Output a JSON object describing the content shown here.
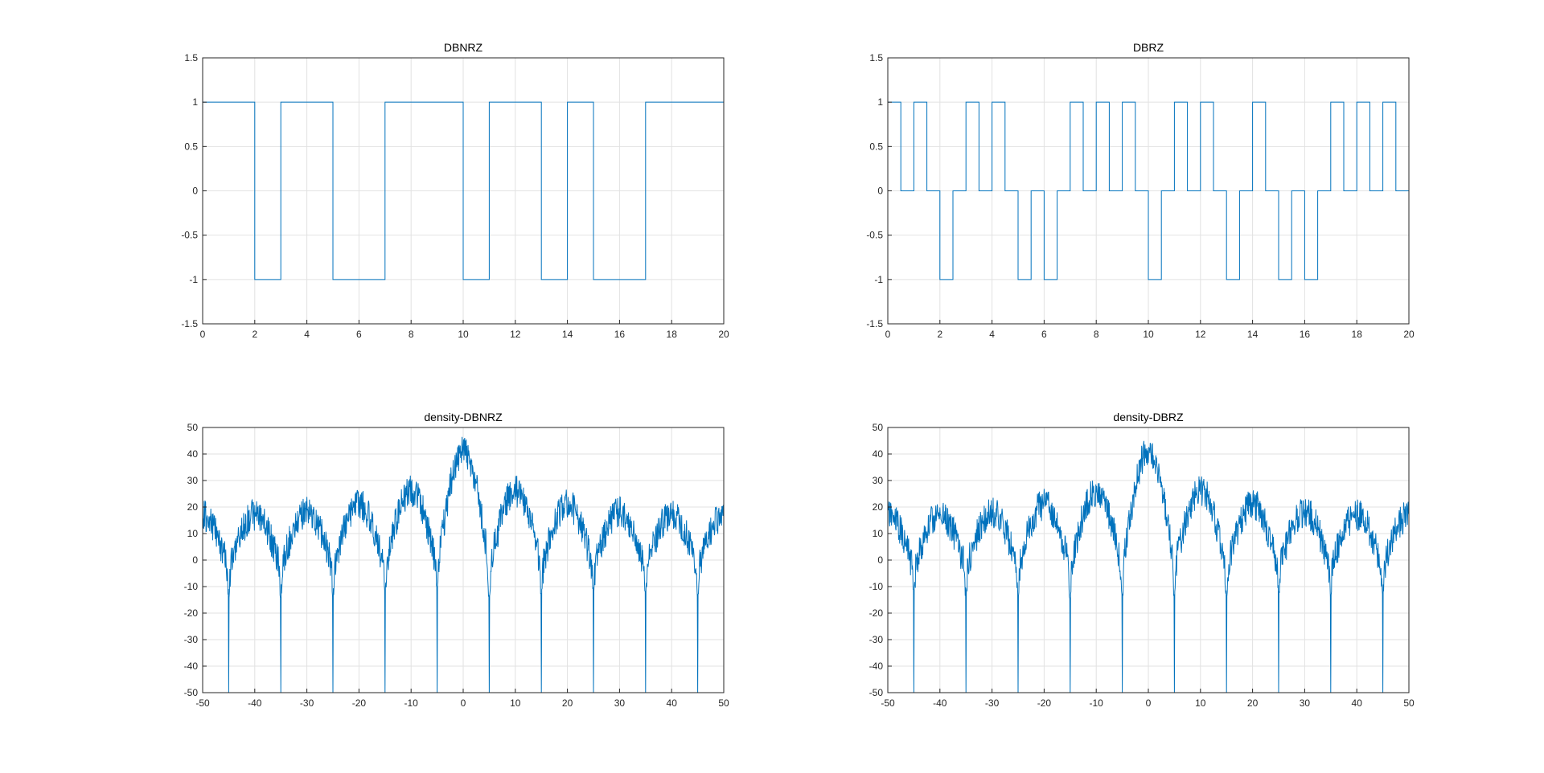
{
  "figure": {
    "background": "#ffffff",
    "line_color": "#0072bd",
    "grid_color": "#e2e2e2",
    "axis_color": "#262626"
  },
  "chart_data": [
    {
      "id": "dbnrz",
      "type": "line",
      "title": "DBNRZ",
      "xlabel": "",
      "ylabel": "",
      "xlim": [
        0,
        20
      ],
      "ylim": [
        -1.5,
        1.5
      ],
      "xticks": [
        0,
        2,
        4,
        6,
        8,
        10,
        12,
        14,
        16,
        18,
        20
      ],
      "xtick_labels": [
        "0",
        "2",
        "4",
        "6",
        "8",
        "10",
        "12",
        "14",
        "16",
        "18",
        "20"
      ],
      "yticks": [
        -1.5,
        -1,
        -0.5,
        0,
        0.5,
        1,
        1.5
      ],
      "ytick_labels": [
        "-1.5",
        "-1",
        "-0.5",
        "0",
        "0.5",
        "1",
        "1.5"
      ],
      "grid": true,
      "step": {
        "unit": 1,
        "levels": [
          1,
          1,
          -1,
          1,
          1,
          -1,
          -1,
          1,
          1,
          1,
          -1,
          1,
          1,
          -1,
          1,
          -1,
          -1,
          1,
          1,
          1
        ]
      }
    },
    {
      "id": "dbrz",
      "type": "line",
      "title": "DBRZ",
      "xlabel": "",
      "ylabel": "",
      "xlim": [
        0,
        20
      ],
      "ylim": [
        -1.5,
        1.5
      ],
      "xticks": [
        0,
        2,
        4,
        6,
        8,
        10,
        12,
        14,
        16,
        18,
        20
      ],
      "xtick_labels": [
        "0",
        "2",
        "4",
        "6",
        "8",
        "10",
        "12",
        "14",
        "16",
        "18",
        "20"
      ],
      "yticks": [
        -1.5,
        -1,
        -0.5,
        0,
        0.5,
        1,
        1.5
      ],
      "ytick_labels": [
        "-1.5",
        "-1",
        "-0.5",
        "0",
        "0.5",
        "1",
        "1.5"
      ],
      "grid": true,
      "step": {
        "unit": 0.5,
        "levels": [
          1,
          0,
          1,
          0,
          -1,
          0,
          1,
          0,
          1,
          0,
          -1,
          0,
          -1,
          0,
          1,
          0,
          1,
          0,
          1,
          0,
          -1,
          0,
          1,
          0,
          1,
          0,
          -1,
          0,
          1,
          0,
          -1,
          0,
          -1,
          0,
          1,
          0,
          1,
          0,
          1,
          0
        ]
      }
    },
    {
      "id": "density-dbnrz",
      "type": "line",
      "title": "density-DBNRZ",
      "xlabel": "",
      "ylabel": "",
      "xlim": [
        -50,
        50
      ],
      "ylim": [
        -50,
        50
      ],
      "xticks": [
        -50,
        -40,
        -30,
        -20,
        -10,
        0,
        10,
        20,
        30,
        40,
        50
      ],
      "xtick_labels": [
        "-50",
        "-40",
        "-30",
        "-20",
        "-10",
        "0",
        "10",
        "20",
        "30",
        "40",
        "50"
      ],
      "yticks": [
        -50,
        -40,
        -30,
        -20,
        -10,
        0,
        10,
        20,
        30,
        40,
        50
      ],
      "ytick_labels": [
        "-50",
        "-40",
        "-30",
        "-20",
        "-10",
        "0",
        "10",
        "20",
        "30",
        "40",
        "50"
      ],
      "grid": true,
      "spectrum": {
        "null_spacing": 10,
        "main_lobe_peak": 45,
        "side_lobe_peaks": [
          30,
          25,
          22,
          21
        ],
        "ripple": 12,
        "floor": -50,
        "seed": 7
      }
    },
    {
      "id": "density-dbrz",
      "type": "line",
      "title": "density-DBRZ",
      "xlabel": "",
      "ylabel": "",
      "xlim": [
        -50,
        50
      ],
      "ylim": [
        -50,
        50
      ],
      "xticks": [
        -50,
        -40,
        -30,
        -20,
        -10,
        0,
        10,
        20,
        30,
        40,
        50
      ],
      "xtick_labels": [
        "-50",
        "-40",
        "-30",
        "-20",
        "-10",
        "0",
        "10",
        "20",
        "30",
        "40",
        "50"
      ],
      "yticks": [
        -50,
        -40,
        -30,
        -20,
        -10,
        0,
        10,
        20,
        30,
        40,
        50
      ],
      "ytick_labels": [
        "-50",
        "-40",
        "-30",
        "-20",
        "-10",
        "0",
        "10",
        "20",
        "30",
        "40",
        "50"
      ],
      "grid": true,
      "spectrum": {
        "null_spacing": 10,
        "main_lobe_peak": 45,
        "side_lobe_peaks": [
          30,
          25,
          22,
          21
        ],
        "ripple": 12,
        "floor": -50,
        "seed": 11
      }
    }
  ]
}
